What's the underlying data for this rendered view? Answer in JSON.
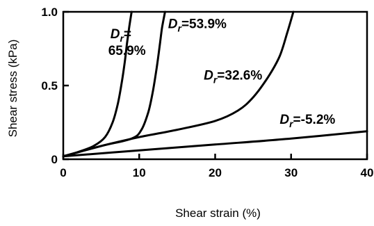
{
  "chart_data": {
    "type": "line",
    "xlabel": "Shear strain (%)",
    "ylabel": "Shear stress (kPa)",
    "xlim": [
      0,
      40
    ],
    "ylim": [
      0,
      1.0
    ],
    "x_ticks": [
      0,
      10,
      20,
      30,
      40
    ],
    "x_tick_labels": [
      "0",
      "10",
      "20",
      "30",
      "40"
    ],
    "y_ticks": [
      0,
      0.5,
      1.0
    ],
    "y_tick_labels": [
      "0",
      "0.5",
      "1.0"
    ],
    "grid": false,
    "legend": "none",
    "series": [
      {
        "x": [
          0,
          2,
          4,
          5.5,
          6.5,
          7.2,
          7.7,
          8.1,
          8.4,
          8.7,
          9.0
        ],
        "y": [
          0.02,
          0.05,
          0.09,
          0.15,
          0.25,
          0.38,
          0.52,
          0.66,
          0.79,
          0.9,
          1.0
        ]
      },
      {
        "x": [
          0,
          5,
          9,
          10.3,
          11.2,
          11.8,
          12.3,
          12.7,
          13.0,
          13.4
        ],
        "y": [
          0.02,
          0.09,
          0.14,
          0.2,
          0.32,
          0.46,
          0.62,
          0.77,
          0.89,
          1.0
        ]
      },
      {
        "x": [
          0,
          5,
          10,
          15,
          20,
          23,
          25,
          27,
          28.5,
          29.5,
          30.3
        ],
        "y": [
          0.02,
          0.09,
          0.15,
          0.2,
          0.26,
          0.33,
          0.42,
          0.56,
          0.7,
          0.86,
          1.0
        ]
      },
      {
        "x": [
          0,
          10,
          20,
          30,
          40
        ],
        "y": [
          0.02,
          0.06,
          0.1,
          0.14,
          0.19
        ]
      }
    ],
    "annotations": [
      {
        "symbol": "D",
        "subscript": "r",
        "sep": "=",
        "value": "",
        "value_line2": "65.9%",
        "at": [
          6.2,
          0.82
        ]
      },
      {
        "symbol": "D",
        "subscript": "r",
        "sep": "=",
        "value": "53.9%",
        "at": [
          13.8,
          0.89
        ]
      },
      {
        "symbol": "D",
        "subscript": "r",
        "sep": "=",
        "value": "32.6%",
        "at": [
          18.5,
          0.54
        ]
      },
      {
        "symbol": "D",
        "subscript": "r",
        "sep": "=",
        "value": "-5.2%",
        "at": [
          28.5,
          0.24
        ]
      }
    ]
  }
}
